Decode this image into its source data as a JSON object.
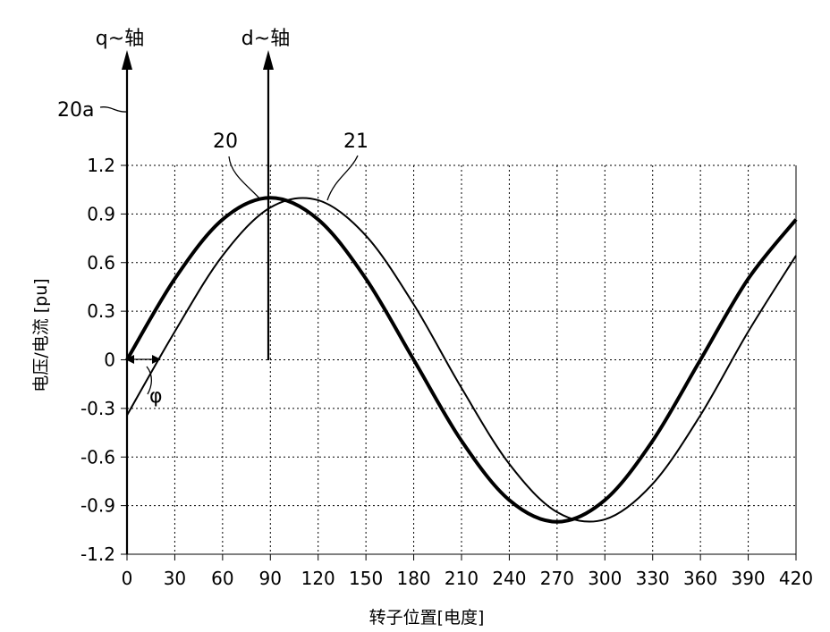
{
  "chart_data": {
    "type": "line",
    "xlabel": "转子位置[电度]",
    "ylabel": "电压/电流 [pu]",
    "xlim": [
      0,
      420
    ],
    "ylim": [
      -1.2,
      1.2
    ],
    "xticks": [
      0,
      30,
      60,
      90,
      120,
      150,
      180,
      210,
      240,
      270,
      300,
      330,
      360,
      390,
      420
    ],
    "yticks": [
      1.2,
      0.9,
      0.6,
      0.3,
      0,
      -0.3,
      -0.6,
      -0.9,
      -1.2
    ],
    "ytick_labels": [
      "1.2",
      "0.9",
      "0.6",
      "0.3",
      "0",
      "-0.3",
      "-0.6",
      "-0.9",
      "-1.2"
    ],
    "grid": true,
    "series": [
      {
        "name": "20",
        "line": "thick",
        "x": [
          0,
          30,
          60,
          90,
          120,
          150,
          180,
          210,
          240,
          270,
          300,
          330,
          360,
          390,
          420
        ],
        "values": [
          0,
          0.5,
          0.866,
          1.0,
          0.866,
          0.5,
          0,
          -0.5,
          -0.866,
          -1.0,
          -0.866,
          -0.5,
          0,
          0.5,
          0.866
        ]
      },
      {
        "name": "21",
        "line": "thin",
        "x": [
          0,
          30,
          60,
          90,
          120,
          150,
          180,
          210,
          240,
          270,
          300,
          330,
          360,
          390,
          420
        ],
        "values": [
          -0.342,
          0.174,
          0.643,
          0.94,
          0.985,
          0.766,
          0.342,
          -0.174,
          -0.643,
          -0.94,
          -0.985,
          -0.766,
          -0.342,
          0.174,
          0.643
        ]
      }
    ],
    "annotations": {
      "q_axis": "q~轴",
      "d_axis": "d~轴",
      "ref_20a": "20a",
      "ref_20": "20",
      "ref_21": "21",
      "phi": "φ"
    }
  }
}
